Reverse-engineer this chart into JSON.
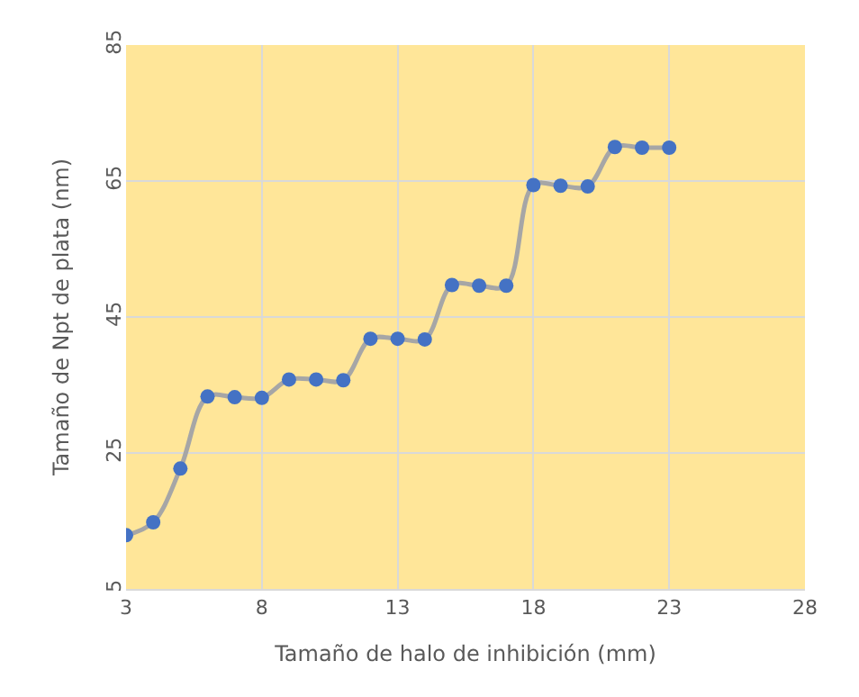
{
  "chart_data": {
    "type": "line",
    "xlabel": "Tamaño de halo de inhibición (mm)",
    "ylabel": "Tamaño de Npt de plata (nm)",
    "x": [
      3,
      4,
      5,
      6,
      7,
      8,
      9,
      10,
      11,
      12,
      13,
      14,
      15,
      16,
      17,
      18,
      19,
      20,
      21,
      22,
      23
    ],
    "series": [
      {
        "color": "#4472c4",
        "values": [
          12.9,
          14.8,
          22.7,
          33.3,
          33.2,
          33.1,
          35.8,
          35.8,
          35.7,
          41.8,
          41.8,
          41.7,
          49.7,
          49.6,
          49.6,
          64.4,
          64.3,
          64.2,
          70.0,
          69.9,
          69.9
        ]
      }
    ],
    "xlim": [
      3,
      28
    ],
    "xticks": [
      3,
      8,
      13,
      18,
      23,
      28
    ],
    "ylim": [
      5,
      85
    ],
    "yticks": [
      5,
      25,
      45,
      65,
      85
    ],
    "grid": true,
    "marker": "circle",
    "line_style": "solid",
    "legend": false
  }
}
